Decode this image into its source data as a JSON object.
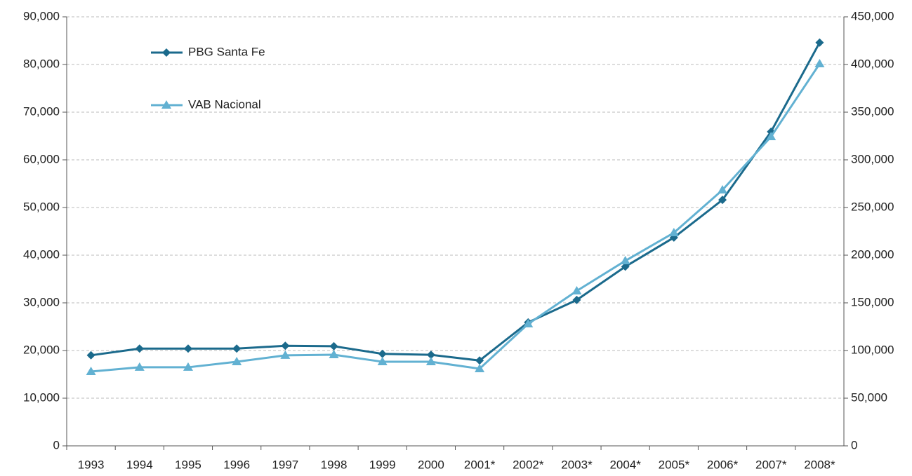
{
  "chart_data": {
    "type": "line",
    "categories": [
      "1993",
      "1994",
      "1995",
      "1996",
      "1997",
      "1998",
      "1999",
      "2000",
      "2001*",
      "2002*",
      "2003*",
      "2004*",
      "2005*",
      "2006*",
      "2007*",
      "2008*"
    ],
    "series": [
      {
        "name": "PBG Santa Fe",
        "color": "#1b6a8c",
        "marker": "diamond",
        "values": [
          19000,
          20400,
          20400,
          20400,
          21000,
          20900,
          19300,
          19100,
          17900,
          25900,
          30600,
          37600,
          43700,
          51600,
          65900,
          84600
        ]
      },
      {
        "name": "VAB Nacional",
        "color": "#62b1d2",
        "marker": "triangle",
        "axis": "y2",
        "values": [
          77900,
          82400,
          82400,
          88200,
          94900,
          95600,
          88200,
          88200,
          80900,
          127900,
          162500,
          194100,
          223500,
          268400,
          324300,
          400700
        ]
      }
    ],
    "ylim": [
      0,
      90000
    ],
    "yticks": [
      0,
      {
        "value": 10000,
        "label": "10,000"
      },
      {
        "value": 20000,
        "label": "20,000"
      },
      {
        "value": 30000,
        "label": "30,000"
      },
      {
        "value": 40000,
        "label": "40,000"
      },
      {
        "value": 50000,
        "label": "50,000"
      },
      {
        "value": 60000,
        "label": "60,000"
      },
      {
        "value": 70000,
        "label": "70,000"
      },
      {
        "value": 80000,
        "label": "80,000"
      },
      {
        "value": 90000,
        "label": "90,000"
      }
    ],
    "y2lim": [
      0,
      450000
    ],
    "y2ticks": [
      0,
      {
        "value": 50000,
        "label": "50,000"
      },
      {
        "value": 100000,
        "label": "100,000"
      },
      {
        "value": 150000,
        "label": "150,000"
      },
      {
        "value": 200000,
        "label": "200,000"
      },
      {
        "value": 250000,
        "label": "250,000"
      },
      {
        "value": 300000,
        "label": "300,000"
      },
      {
        "value": 350000,
        "label": "350,000"
      },
      {
        "value": 400000,
        "label": "400,000"
      },
      {
        "value": 450000,
        "label": "450,000"
      }
    ],
    "grid": true,
    "legend": "upper left"
  }
}
